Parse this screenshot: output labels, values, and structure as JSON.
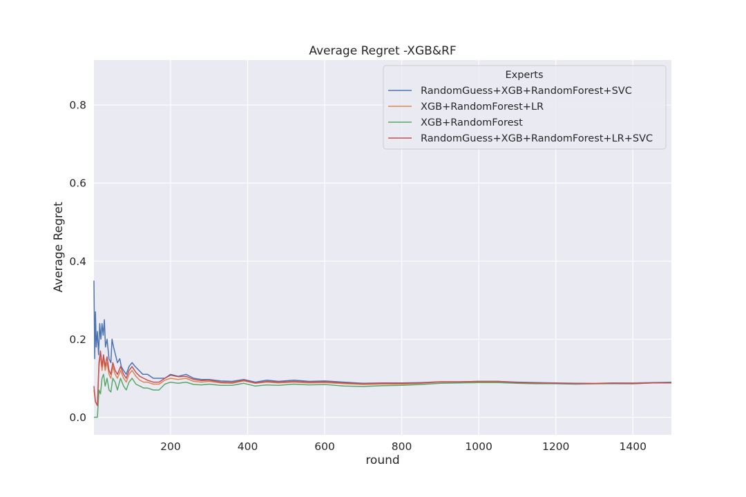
{
  "chart_data": {
    "type": "line",
    "title": "Average Regret -XGB&RF",
    "xlabel": "round",
    "ylabel": "Average Regret",
    "xlim": [
      1,
      1500
    ],
    "ylim": [
      -0.045,
      0.915
    ],
    "xticks": [
      200,
      400,
      600,
      800,
      1000,
      1200,
      1400
    ],
    "yticks": [
      0.0,
      0.2,
      0.4,
      0.6,
      0.8
    ],
    "grid": true,
    "legend": {
      "title": "Experts",
      "position": "top-right"
    },
    "colors": {
      "plot_bg": "#eaeaf2",
      "grid": "#ffffff",
      "series": [
        "#4c72b0",
        "#dd8452",
        "#55a868",
        "#c44e52"
      ]
    },
    "series": [
      {
        "name": "RandomGuess+XGB+RandomForest+SVC",
        "color": "#4c72b0",
        "points": [
          [
            1,
            0.35
          ],
          [
            3,
            0.15
          ],
          [
            5,
            0.27
          ],
          [
            7,
            0.18
          ],
          [
            10,
            0.22
          ],
          [
            13,
            0.16
          ],
          [
            16,
            0.24
          ],
          [
            19,
            0.2
          ],
          [
            22,
            0.24
          ],
          [
            25,
            0.21
          ],
          [
            28,
            0.25
          ],
          [
            31,
            0.18
          ],
          [
            35,
            0.2
          ],
          [
            40,
            0.15
          ],
          [
            45,
            0.14
          ],
          [
            48,
            0.2
          ],
          [
            52,
            0.18
          ],
          [
            57,
            0.16
          ],
          [
            62,
            0.14
          ],
          [
            68,
            0.15
          ],
          [
            72,
            0.13
          ],
          [
            78,
            0.12
          ],
          [
            85,
            0.11
          ],
          [
            92,
            0.13
          ],
          [
            100,
            0.14
          ],
          [
            108,
            0.13
          ],
          [
            118,
            0.12
          ],
          [
            128,
            0.11
          ],
          [
            140,
            0.11
          ],
          [
            155,
            0.1
          ],
          [
            170,
            0.1
          ],
          [
            185,
            0.1
          ],
          [
            200,
            0.11
          ],
          [
            220,
            0.105
          ],
          [
            240,
            0.11
          ],
          [
            260,
            0.1
          ],
          [
            280,
            0.097
          ],
          [
            300,
            0.097
          ],
          [
            330,
            0.093
          ],
          [
            360,
            0.092
          ],
          [
            390,
            0.097
          ],
          [
            420,
            0.09
          ],
          [
            450,
            0.095
          ],
          [
            480,
            0.092
          ],
          [
            520,
            0.095
          ],
          [
            560,
            0.092
          ],
          [
            600,
            0.093
          ],
          [
            650,
            0.09
          ],
          [
            700,
            0.087
          ],
          [
            750,
            0.088
          ],
          [
            800,
            0.088
          ],
          [
            850,
            0.089
          ],
          [
            900,
            0.091
          ],
          [
            950,
            0.091
          ],
          [
            1000,
            0.092
          ],
          [
            1050,
            0.092
          ],
          [
            1100,
            0.09
          ],
          [
            1150,
            0.089
          ],
          [
            1200,
            0.088
          ],
          [
            1250,
            0.087
          ],
          [
            1300,
            0.087
          ],
          [
            1350,
            0.088
          ],
          [
            1400,
            0.088
          ],
          [
            1450,
            0.089
          ],
          [
            1500,
            0.09
          ]
        ]
      },
      {
        "name": "XGB+RandomForest+LR",
        "color": "#dd8452",
        "points": [
          [
            1,
            0.07
          ],
          [
            5,
            0.04
          ],
          [
            10,
            0.03
          ],
          [
            14,
            0.13
          ],
          [
            18,
            0.16
          ],
          [
            22,
            0.12
          ],
          [
            26,
            0.15
          ],
          [
            30,
            0.12
          ],
          [
            35,
            0.14
          ],
          [
            40,
            0.11
          ],
          [
            45,
            0.1
          ],
          [
            50,
            0.13
          ],
          [
            56,
            0.11
          ],
          [
            62,
            0.1
          ],
          [
            70,
            0.12
          ],
          [
            78,
            0.1
          ],
          [
            85,
            0.09
          ],
          [
            92,
            0.11
          ],
          [
            100,
            0.12
          ],
          [
            110,
            0.105
          ],
          [
            120,
            0.095
          ],
          [
            130,
            0.09
          ],
          [
            140,
            0.09
          ],
          [
            155,
            0.085
          ],
          [
            170,
            0.085
          ],
          [
            185,
            0.095
          ],
          [
            200,
            0.1
          ],
          [
            220,
            0.097
          ],
          [
            240,
            0.1
          ],
          [
            260,
            0.092
          ],
          [
            280,
            0.09
          ],
          [
            300,
            0.092
          ],
          [
            330,
            0.088
          ],
          [
            360,
            0.087
          ],
          [
            390,
            0.093
          ],
          [
            420,
            0.087
          ],
          [
            450,
            0.09
          ],
          [
            480,
            0.088
          ],
          [
            520,
            0.09
          ],
          [
            560,
            0.088
          ],
          [
            600,
            0.089
          ],
          [
            650,
            0.086
          ],
          [
            700,
            0.084
          ],
          [
            750,
            0.085
          ],
          [
            800,
            0.085
          ],
          [
            850,
            0.087
          ],
          [
            900,
            0.09
          ],
          [
            950,
            0.09
          ],
          [
            1000,
            0.091
          ],
          [
            1050,
            0.091
          ],
          [
            1100,
            0.089
          ],
          [
            1150,
            0.088
          ],
          [
            1200,
            0.087
          ],
          [
            1250,
            0.086
          ],
          [
            1300,
            0.087
          ],
          [
            1350,
            0.087
          ],
          [
            1400,
            0.087
          ],
          [
            1450,
            0.088
          ],
          [
            1500,
            0.089
          ]
        ]
      },
      {
        "name": "XGB+RandomForest",
        "color": "#55a868",
        "points": [
          [
            1,
            0.0
          ],
          [
            5,
            0.0
          ],
          [
            10,
            0.0
          ],
          [
            14,
            0.07
          ],
          [
            18,
            0.06
          ],
          [
            22,
            0.1
          ],
          [
            26,
            0.11
          ],
          [
            30,
            0.08
          ],
          [
            35,
            0.1
          ],
          [
            40,
            0.07
          ],
          [
            45,
            0.065
          ],
          [
            50,
            0.1
          ],
          [
            56,
            0.09
          ],
          [
            62,
            0.07
          ],
          [
            70,
            0.1
          ],
          [
            78,
            0.08
          ],
          [
            85,
            0.07
          ],
          [
            92,
            0.09
          ],
          [
            100,
            0.1
          ],
          [
            110,
            0.085
          ],
          [
            120,
            0.08
          ],
          [
            130,
            0.075
          ],
          [
            140,
            0.075
          ],
          [
            155,
            0.07
          ],
          [
            170,
            0.07
          ],
          [
            185,
            0.085
          ],
          [
            200,
            0.09
          ],
          [
            220,
            0.087
          ],
          [
            240,
            0.09
          ],
          [
            260,
            0.084
          ],
          [
            280,
            0.083
          ],
          [
            300,
            0.085
          ],
          [
            330,
            0.082
          ],
          [
            360,
            0.082
          ],
          [
            390,
            0.087
          ],
          [
            420,
            0.08
          ],
          [
            450,
            0.083
          ],
          [
            480,
            0.082
          ],
          [
            520,
            0.085
          ],
          [
            560,
            0.083
          ],
          [
            600,
            0.084
          ],
          [
            650,
            0.08
          ],
          [
            700,
            0.079
          ],
          [
            750,
            0.081
          ],
          [
            800,
            0.082
          ],
          [
            850,
            0.084
          ],
          [
            900,
            0.087
          ],
          [
            950,
            0.088
          ],
          [
            1000,
            0.089
          ],
          [
            1050,
            0.089
          ],
          [
            1100,
            0.087
          ],
          [
            1150,
            0.086
          ],
          [
            1200,
            0.086
          ],
          [
            1250,
            0.085
          ],
          [
            1300,
            0.086
          ],
          [
            1350,
            0.086
          ],
          [
            1400,
            0.086
          ],
          [
            1450,
            0.088
          ],
          [
            1500,
            0.089
          ]
        ]
      },
      {
        "name": "RandomGuess+XGB+RandomForest+LR+SVC",
        "color": "#c44e52",
        "points": [
          [
            1,
            0.08
          ],
          [
            5,
            0.04
          ],
          [
            10,
            0.03
          ],
          [
            14,
            0.14
          ],
          [
            18,
            0.17
          ],
          [
            22,
            0.13
          ],
          [
            26,
            0.16
          ],
          [
            30,
            0.13
          ],
          [
            35,
            0.155
          ],
          [
            40,
            0.12
          ],
          [
            45,
            0.11
          ],
          [
            50,
            0.14
          ],
          [
            56,
            0.12
          ],
          [
            62,
            0.11
          ],
          [
            70,
            0.13
          ],
          [
            78,
            0.11
          ],
          [
            85,
            0.1
          ],
          [
            92,
            0.12
          ],
          [
            100,
            0.13
          ],
          [
            110,
            0.115
          ],
          [
            120,
            0.105
          ],
          [
            130,
            0.1
          ],
          [
            140,
            0.095
          ],
          [
            155,
            0.09
          ],
          [
            170,
            0.09
          ],
          [
            185,
            0.1
          ],
          [
            200,
            0.108
          ],
          [
            220,
            0.104
          ],
          [
            240,
            0.105
          ],
          [
            260,
            0.097
          ],
          [
            280,
            0.094
          ],
          [
            300,
            0.095
          ],
          [
            330,
            0.09
          ],
          [
            360,
            0.089
          ],
          [
            390,
            0.095
          ],
          [
            420,
            0.088
          ],
          [
            450,
            0.092
          ],
          [
            480,
            0.09
          ],
          [
            520,
            0.092
          ],
          [
            560,
            0.09
          ],
          [
            600,
            0.091
          ],
          [
            650,
            0.088
          ],
          [
            700,
            0.086
          ],
          [
            750,
            0.087
          ],
          [
            800,
            0.087
          ],
          [
            850,
            0.088
          ],
          [
            900,
            0.091
          ],
          [
            950,
            0.091
          ],
          [
            1000,
            0.092
          ],
          [
            1050,
            0.092
          ],
          [
            1100,
            0.089
          ],
          [
            1150,
            0.088
          ],
          [
            1200,
            0.087
          ],
          [
            1250,
            0.086
          ],
          [
            1300,
            0.086
          ],
          [
            1350,
            0.087
          ],
          [
            1400,
            0.086
          ],
          [
            1450,
            0.088
          ],
          [
            1500,
            0.088
          ]
        ]
      }
    ]
  }
}
